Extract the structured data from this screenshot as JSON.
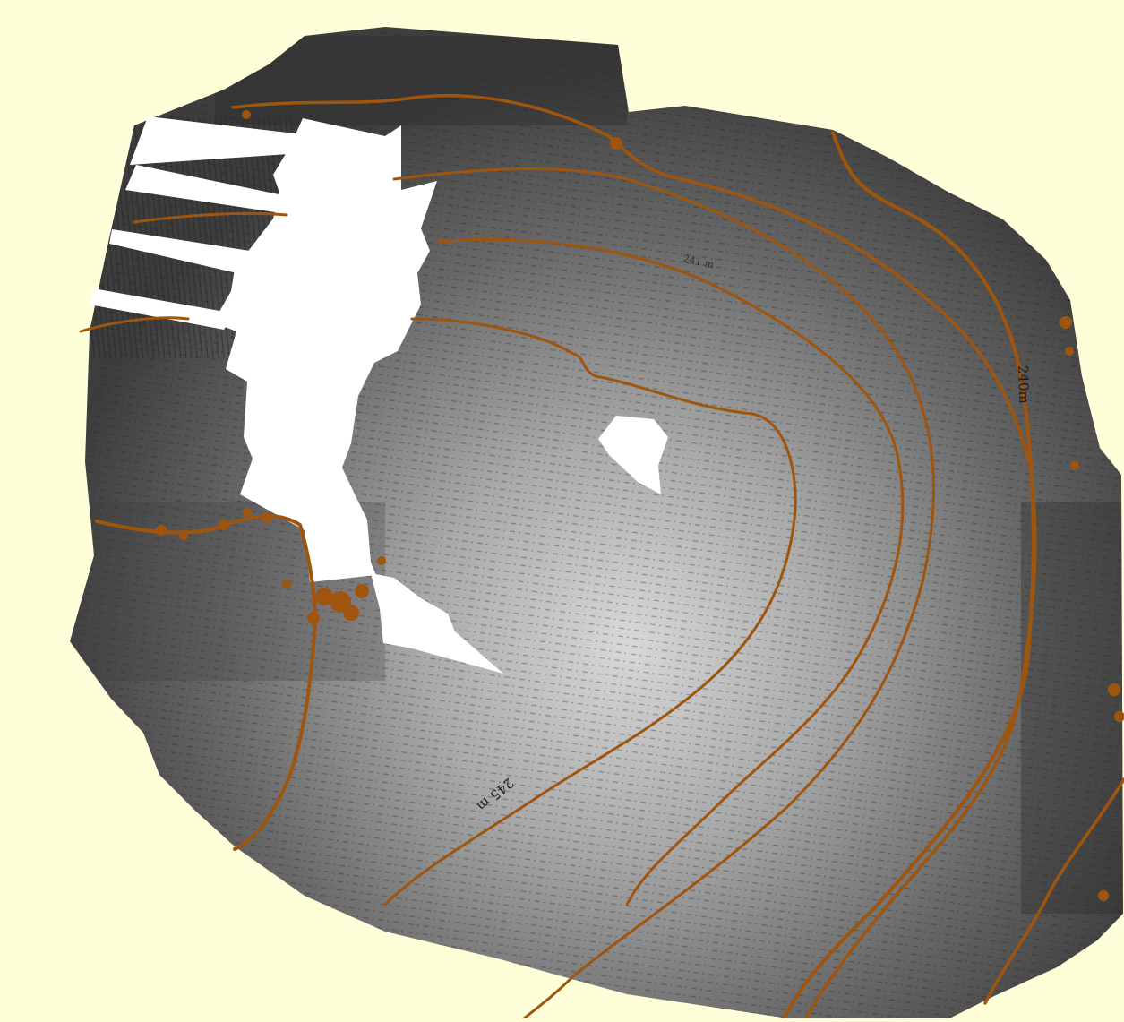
{
  "map": {
    "background_color": "#fefed9",
    "contour_color": "#a0550f",
    "nodata_color": "#ffffff",
    "hillshade_dark": "#3e3e3e",
    "hillshade_light": "#d6d6d6"
  },
  "contour_labels": [
    "240m",
    "245 m",
    "241 m"
  ]
}
